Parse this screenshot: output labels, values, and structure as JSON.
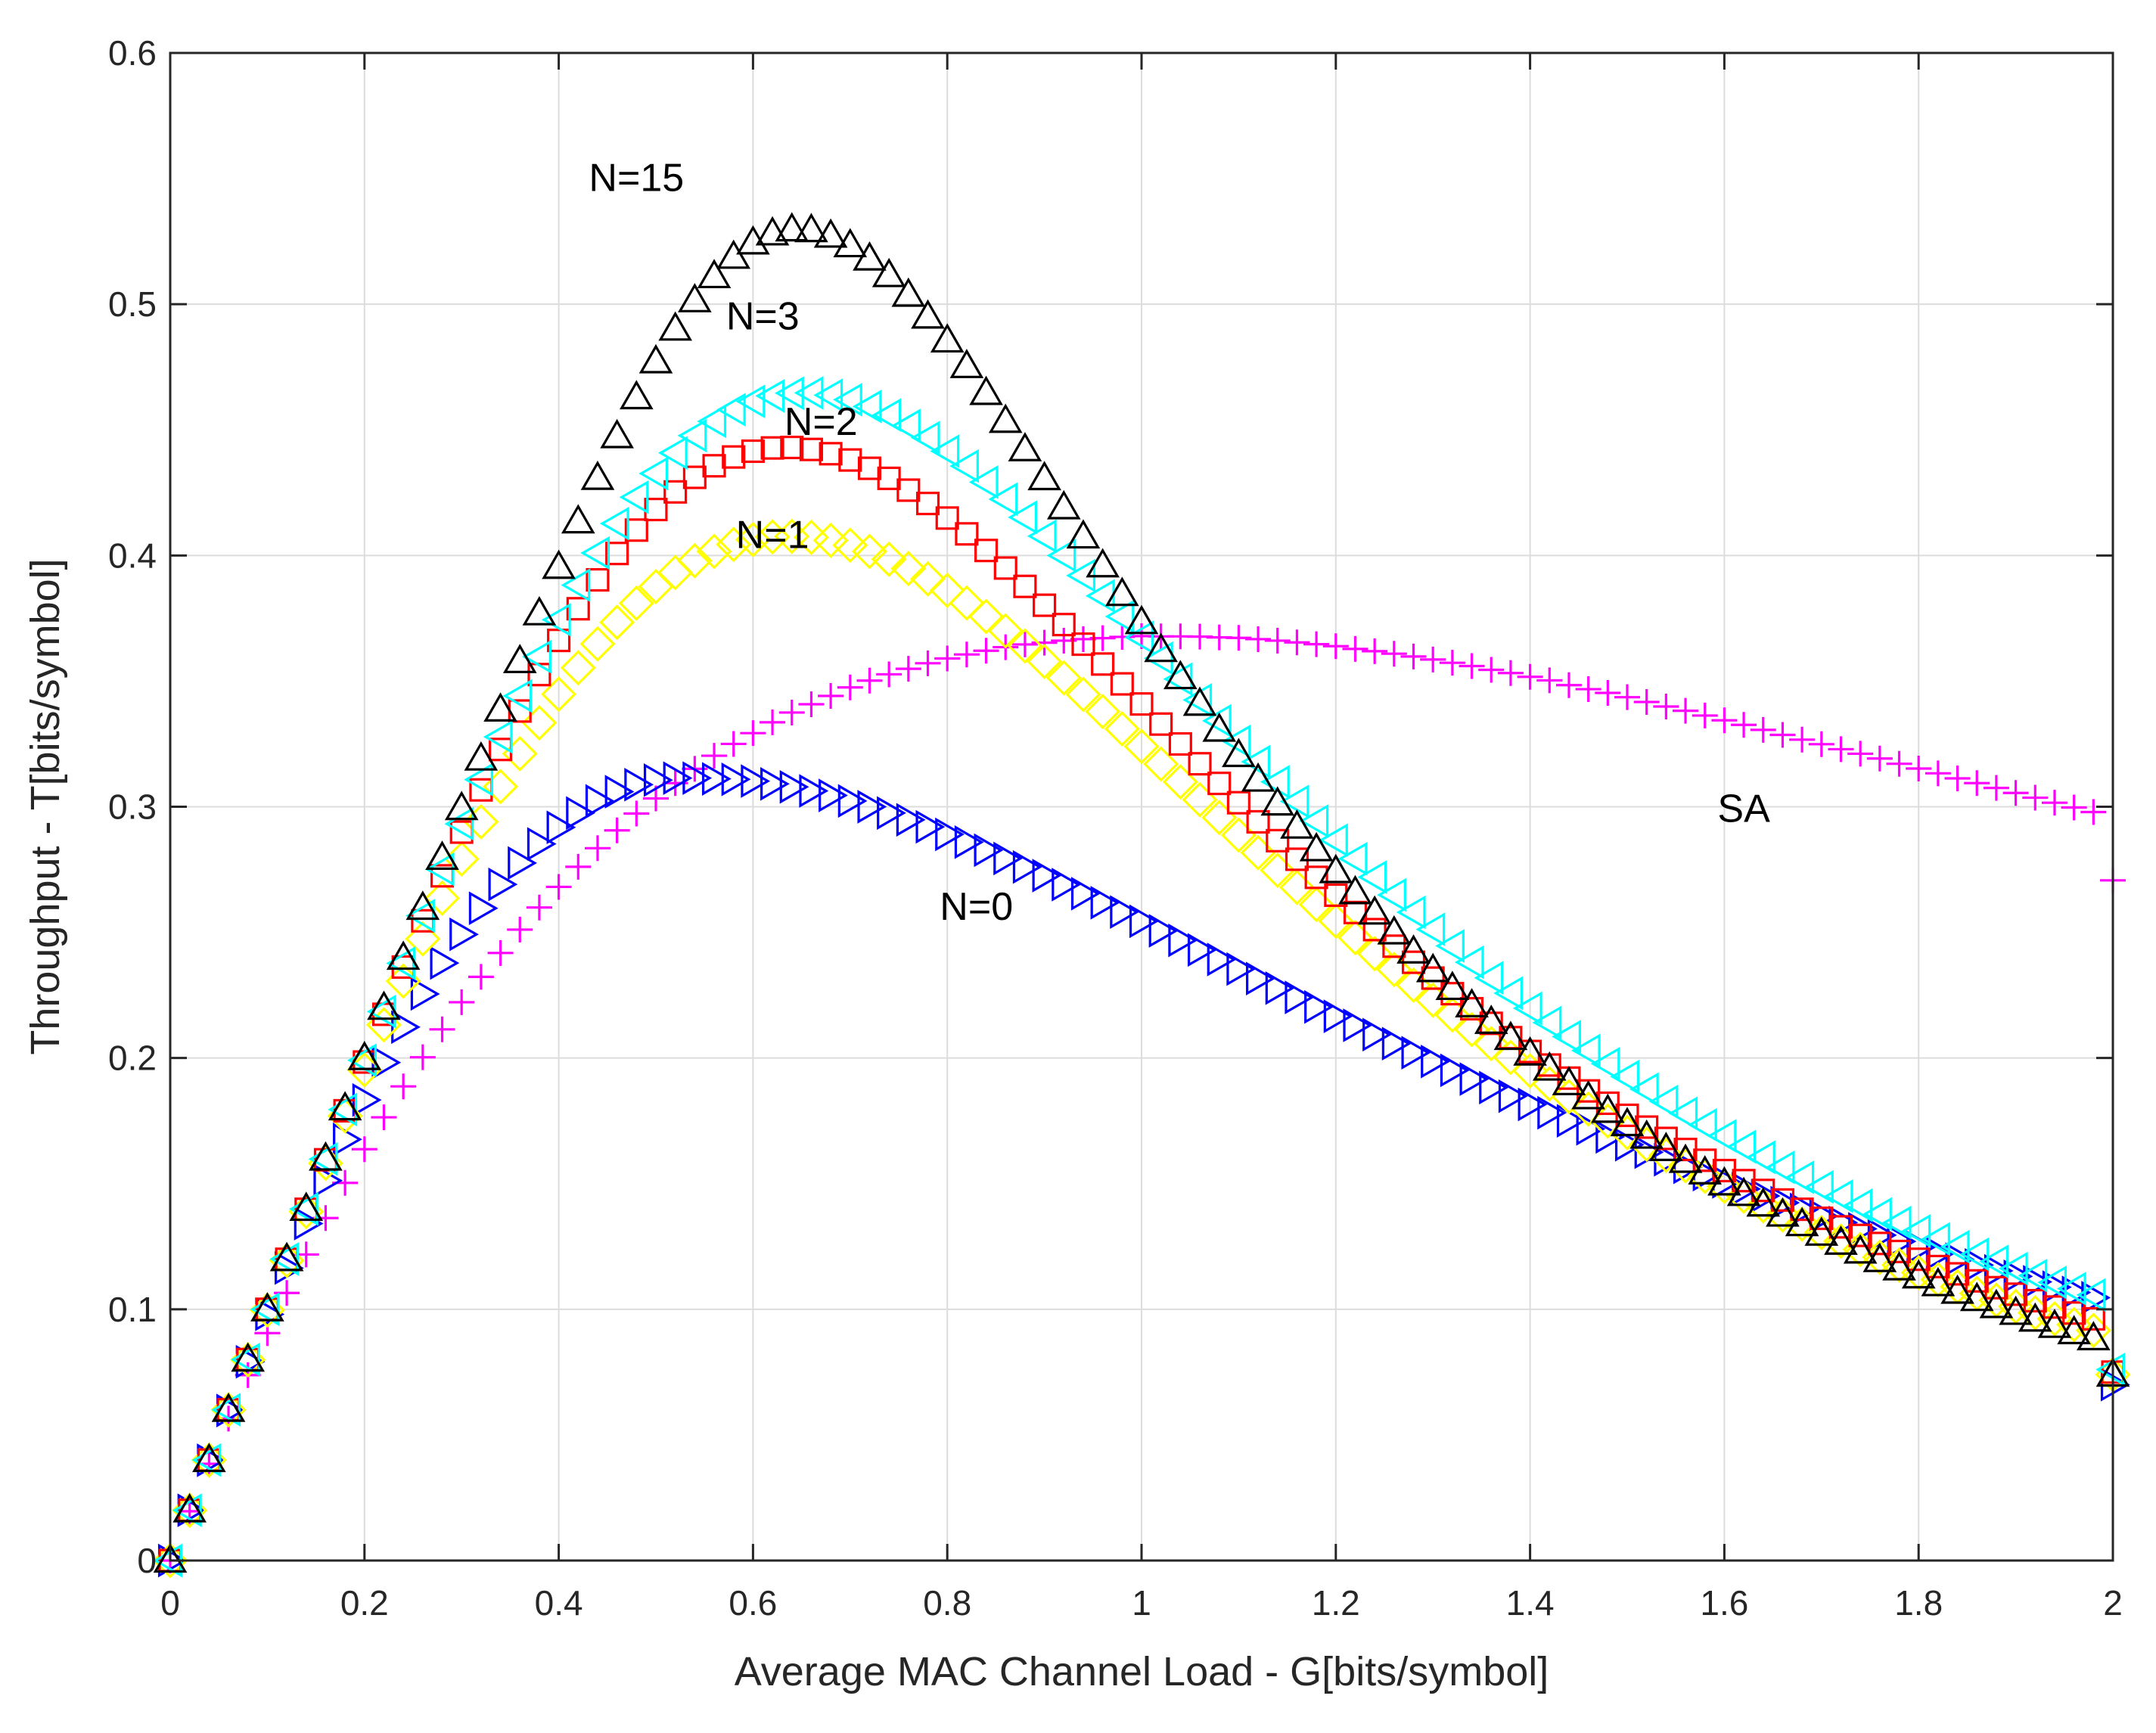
{
  "chart_data": {
    "type": "scatter",
    "title": "",
    "xlabel": "Average MAC Channel Load - G[bits/symbol]",
    "ylabel": "Throughput - T[bits/symbol]",
    "xlim": [
      0,
      2
    ],
    "ylim": [
      0,
      0.6
    ],
    "grid": true,
    "xticks": [
      0,
      0.2,
      0.4,
      0.6,
      0.8,
      1,
      1.2,
      1.4,
      1.6,
      1.8,
      2
    ],
    "xtick_labels": [
      "0",
      "0.2",
      "0.4",
      "0.6",
      "0.8",
      "1",
      "1.2",
      "1.4",
      "1.6",
      "1.8",
      "2"
    ],
    "yticks": [
      0,
      0.1,
      0.2,
      0.3,
      0.4,
      0.5,
      0.6
    ],
    "ytick_labels": [
      "0",
      "0.1",
      "0.2",
      "0.3",
      "0.4",
      "0.5",
      "0.6"
    ],
    "x": [
      0,
      0.02,
      0.04,
      0.06,
      0.08,
      0.1,
      0.12,
      0.14,
      0.16,
      0.18,
      0.2,
      0.22,
      0.24,
      0.26,
      0.28,
      0.3,
      0.32,
      0.34,
      0.36,
      0.38,
      0.4,
      0.42,
      0.44,
      0.46,
      0.48,
      0.5,
      0.52,
      0.54,
      0.56,
      0.58,
      0.6,
      0.62,
      0.64,
      0.66,
      0.68,
      0.7,
      0.72,
      0.74,
      0.76,
      0.78,
      0.8,
      0.82,
      0.84,
      0.86,
      0.88,
      0.9,
      0.92,
      0.94,
      0.96,
      0.98,
      1,
      1.02,
      1.04,
      1.06,
      1.08,
      1.1,
      1.12,
      1.14,
      1.16,
      1.18,
      1.2,
      1.22,
      1.24,
      1.26,
      1.28,
      1.3,
      1.32,
      1.34,
      1.36,
      1.38,
      1.4,
      1.42,
      1.44,
      1.46,
      1.48,
      1.5,
      1.52,
      1.54,
      1.56,
      1.58,
      1.6,
      1.62,
      1.64,
      1.66,
      1.68,
      1.7,
      1.72,
      1.74,
      1.76,
      1.78,
      1.8,
      1.82,
      1.84,
      1.86,
      1.88,
      1.9,
      1.92,
      1.94,
      1.96,
      1.98,
      2
    ],
    "series": [
      {
        "name": "SA",
        "marker": "plus",
        "color": "#ff00ff",
        "values": [
          0,
          0.0196,
          0.0385,
          0.0565,
          0.0738,
          0.0905,
          0.1065,
          0.1218,
          0.1363,
          0.1503,
          0.1637,
          0.1764,
          0.1887,
          0.2003,
          0.2114,
          0.2222,
          0.2323,
          0.2418,
          0.2511,
          0.2599,
          0.2681,
          0.2761,
          0.2835,
          0.2906,
          0.2973,
          0.3033,
          0.3094,
          0.3151,
          0.3203,
          0.325,
          0.3293,
          0.3336,
          0.3375,
          0.3408,
          0.3441,
          0.3475,
          0.3502,
          0.3527,
          0.3549,
          0.3571,
          0.359,
          0.3606,
          0.3621,
          0.3635,
          0.3646,
          0.3653,
          0.3661,
          0.3667,
          0.3671,
          0.3676,
          0.3679,
          0.3678,
          0.3678,
          0.3677,
          0.3674,
          0.3672,
          0.3667,
          0.3661,
          0.3654,
          0.3647,
          0.3639,
          0.3628,
          0.3619,
          0.3609,
          0.3598,
          0.3586,
          0.3573,
          0.356,
          0.3545,
          0.3532,
          0.3517,
          0.3503,
          0.3484,
          0.3468,
          0.3453,
          0.3436,
          0.3417,
          0.3399,
          0.3382,
          0.3363,
          0.3344,
          0.3326,
          0.3306,
          0.3286,
          0.3267,
          0.3249,
          0.3229,
          0.3211,
          0.3192,
          0.3171,
          0.3152,
          0.3133,
          0.3113,
          0.3094,
          0.3075,
          0.3055,
          0.3036,
          0.3016,
          0.2997,
          0.2979,
          0.2707
        ]
      },
      {
        "name": "N=0",
        "marker": "triangle-right",
        "color": "#0000ff",
        "values": [
          0,
          0.02,
          0.0399,
          0.0597,
          0.0791,
          0.098,
          0.1164,
          0.1341,
          0.1512,
          0.1676,
          0.1833,
          0.1982,
          0.2123,
          0.2255,
          0.2378,
          0.2492,
          0.2596,
          0.2691,
          0.2776,
          0.2852,
          0.2918,
          0.2975,
          0.3023,
          0.306,
          0.3088,
          0.3106,
          0.3114,
          0.3114,
          0.3111,
          0.3109,
          0.3102,
          0.3091,
          0.3079,
          0.3063,
          0.3045,
          0.3023,
          0.3,
          0.2975,
          0.2948,
          0.292,
          0.289,
          0.2859,
          0.2827,
          0.2794,
          0.276,
          0.2726,
          0.269,
          0.2654,
          0.2618,
          0.2581,
          0.2544,
          0.2506,
          0.2468,
          0.243,
          0.2392,
          0.2354,
          0.2316,
          0.2278,
          0.2241,
          0.2203,
          0.2166,
          0.213,
          0.2093,
          0.2057,
          0.2021,
          0.1986,
          0.1951,
          0.1916,
          0.1882,
          0.1848,
          0.1815,
          0.1782,
          0.175,
          0.1718,
          0.1686,
          0.1655,
          0.1625,
          0.1595,
          0.1565,
          0.1536,
          0.1507,
          0.1479,
          0.1451,
          0.1424,
          0.1397,
          0.1371,
          0.1345,
          0.132,
          0.1295,
          0.127,
          0.1246,
          0.1222,
          0.1199,
          0.1176,
          0.1153,
          0.1131,
          0.1109,
          0.1088,
          0.1067,
          0.1046,
          0.07
        ]
      },
      {
        "name": "N=1",
        "marker": "diamond",
        "color": "#ffff00",
        "values": [
          0,
          0.02,
          0.04,
          0.06,
          0.0799,
          0.0997,
          0.1194,
          0.1389,
          0.1581,
          0.1769,
          0.1953,
          0.2132,
          0.2306,
          0.2474,
          0.2636,
          0.2792,
          0.294,
          0.308,
          0.3211,
          0.3334,
          0.3448,
          0.3553,
          0.3648,
          0.3734,
          0.381,
          0.3876,
          0.3932,
          0.3979,
          0.4016,
          0.4044,
          0.4063,
          0.4074,
          0.4076,
          0.4072,
          0.406,
          0.4041,
          0.4016,
          0.3985,
          0.3948,
          0.3907,
          0.3861,
          0.3811,
          0.3757,
          0.37,
          0.364,
          0.3578,
          0.3513,
          0.3447,
          0.3379,
          0.331,
          0.324,
          0.317,
          0.3099,
          0.3028,
          0.2957,
          0.2887,
          0.2817,
          0.2747,
          0.2679,
          0.2611,
          0.2545,
          0.2479,
          0.2415,
          0.2352,
          0.229,
          0.223,
          0.2171,
          0.2113,
          0.2057,
          0.2002,
          0.1949,
          0.1897,
          0.1846,
          0.1797,
          0.1749,
          0.1703,
          0.1657,
          0.1613,
          0.1571,
          0.1529,
          0.1489,
          0.145,
          0.1412,
          0.1375,
          0.1339,
          0.1305,
          0.1271,
          0.1238,
          0.1207,
          0.1176,
          0.1146,
          0.1118,
          0.109,
          0.1063,
          0.1036,
          0.1011,
          0.0986,
          0.0962,
          0.0939,
          0.0916,
          0.074
        ]
      },
      {
        "name": "N=2",
        "marker": "square",
        "color": "#ff0000",
        "values": [
          0,
          0.02,
          0.04,
          0.06,
          0.08,
          0.1,
          0.1199,
          0.1398,
          0.1595,
          0.179,
          0.1984,
          0.2174,
          0.2362,
          0.2546,
          0.2725,
          0.2899,
          0.3067,
          0.3228,
          0.3381,
          0.3526,
          0.3662,
          0.3788,
          0.3903,
          0.4008,
          0.4101,
          0.4183,
          0.4253,
          0.4311,
          0.4357,
          0.4392,
          0.4415,
          0.4428,
          0.443,
          0.4422,
          0.4405,
          0.438,
          0.4347,
          0.4307,
          0.426,
          0.4207,
          0.4149,
          0.4086,
          0.402,
          0.395,
          0.3877,
          0.3802,
          0.3725,
          0.3647,
          0.3568,
          0.3489,
          0.3409,
          0.3329,
          0.325,
          0.3171,
          0.3093,
          0.3016,
          0.294,
          0.2865,
          0.2791,
          0.2719,
          0.2648,
          0.2579,
          0.2511,
          0.2445,
          0.2381,
          0.2318,
          0.2256,
          0.2196,
          0.2138,
          0.2081,
          0.2026,
          0.1972,
          0.192,
          0.1869,
          0.182,
          0.1772,
          0.1725,
          0.168,
          0.1636,
          0.1593,
          0.1552,
          0.1512,
          0.1473,
          0.1435,
          0.1398,
          0.1362,
          0.1328,
          0.1294,
          0.1262,
          0.123,
          0.1199,
          0.117,
          0.1141,
          0.1113,
          0.1086,
          0.106,
          0.1034,
          0.1009,
          0.0985,
          0.0962,
          0.075
        ]
      },
      {
        "name": "N=3",
        "marker": "triangle-left",
        "color": "#00ffff",
        "values": [
          0,
          0.02,
          0.04,
          0.06,
          0.08,
          0.1,
          0.12,
          0.1399,
          0.1598,
          0.1795,
          0.1991,
          0.2185,
          0.2377,
          0.2566,
          0.2751,
          0.2932,
          0.3108,
          0.3278,
          0.3441,
          0.3597,
          0.3744,
          0.3882,
          0.401,
          0.4127,
          0.4232,
          0.4326,
          0.4408,
          0.4477,
          0.4534,
          0.458,
          0.4613,
          0.4635,
          0.4646,
          0.4647,
          0.4638,
          0.462,
          0.4593,
          0.4559,
          0.4517,
          0.4469,
          0.4415,
          0.4356,
          0.4292,
          0.4224,
          0.4152,
          0.4077,
          0.4,
          0.392,
          0.3839,
          0.3757,
          0.3674,
          0.3591,
          0.3508,
          0.3425,
          0.3342,
          0.326,
          0.3179,
          0.3099,
          0.3021,
          0.2943,
          0.2867,
          0.2793,
          0.272,
          0.2649,
          0.258,
          0.2512,
          0.2446,
          0.2381,
          0.2319,
          0.2258,
          0.2198,
          0.2141,
          0.2085,
          0.203,
          0.1977,
          0.1926,
          0.1876,
          0.1827,
          0.178,
          0.1734,
          0.169,
          0.1647,
          0.1605,
          0.1565,
          0.1525,
          0.1487,
          0.145,
          0.1414,
          0.1379,
          0.1345,
          0.1312,
          0.128,
          0.1249,
          0.1219,
          0.119,
          0.1162,
          0.1134,
          0.1107,
          0.1082,
          0.1057,
          0.076
        ]
      },
      {
        "name": "N=15",
        "marker": "triangle-up",
        "color": "#000000",
        "values": [
          0,
          0.02,
          0.04,
          0.06,
          0.08,
          0.1,
          0.12,
          0.14,
          0.16,
          0.18,
          0.2,
          0.22,
          0.2399,
          0.2598,
          0.2797,
          0.2995,
          0.3192,
          0.3387,
          0.358,
          0.377,
          0.3955,
          0.4136,
          0.4309,
          0.4475,
          0.463,
          0.4773,
          0.4903,
          0.5016,
          0.5112,
          0.5189,
          0.5246,
          0.5282,
          0.5298,
          0.5295,
          0.5273,
          0.5235,
          0.5182,
          0.5116,
          0.5038,
          0.4951,
          0.4856,
          0.4754,
          0.4647,
          0.4536,
          0.4423,
          0.4308,
          0.4192,
          0.4076,
          0.3961,
          0.3847,
          0.3735,
          0.3624,
          0.3516,
          0.341,
          0.3307,
          0.3206,
          0.3108,
          0.3013,
          0.2921,
          0.2831,
          0.2744,
          0.266,
          0.2579,
          0.25,
          0.2424,
          0.235,
          0.2279,
          0.221,
          0.2144,
          0.208,
          0.2018,
          0.1958,
          0.19,
          0.1844,
          0.179,
          0.1737,
          0.1687,
          0.1638,
          0.1591,
          0.1545,
          0.1501,
          0.1459,
          0.1417,
          0.1377,
          0.1339,
          0.1301,
          0.1265,
          0.123,
          0.1196,
          0.1163,
          0.1131,
          0.11,
          0.107,
          0.1041,
          0.1013,
          0.0986,
          0.0959,
          0.0934,
          0.0909,
          0.0885,
          0.074
        ]
      }
    ],
    "annotations": [
      {
        "text": "N=15",
        "x": 0.48,
        "y": 0.545
      },
      {
        "text": "N=3",
        "x": 0.61,
        "y": 0.49
      },
      {
        "text": "N=2",
        "x": 0.67,
        "y": 0.448
      },
      {
        "text": "N=1",
        "x": 0.62,
        "y": 0.403
      },
      {
        "text": "N=0",
        "x": 0.83,
        "y": 0.255
      },
      {
        "text": "SA",
        "x": 1.62,
        "y": 0.294
      }
    ]
  }
}
